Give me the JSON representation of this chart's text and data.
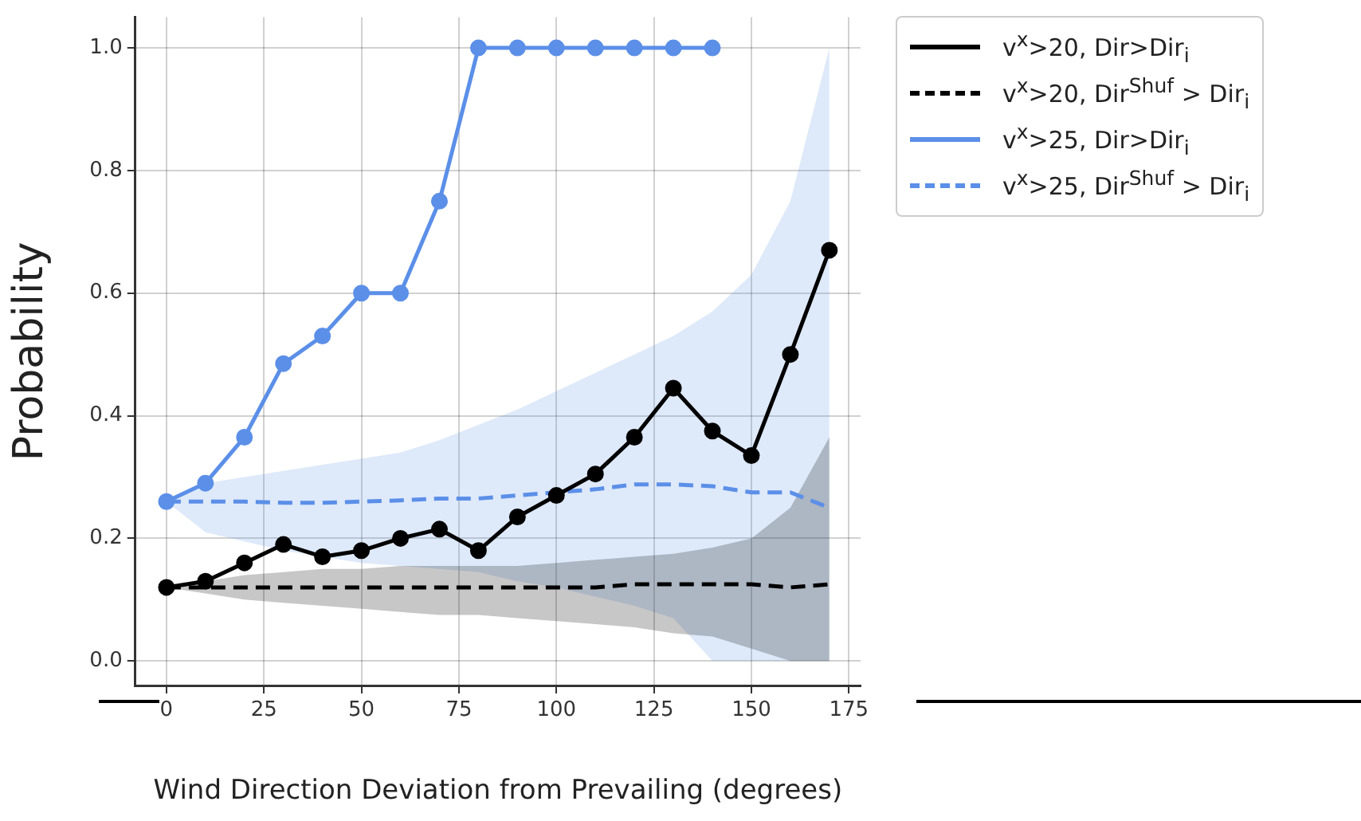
{
  "chart_data": {
    "type": "line",
    "ylabel": "Probability",
    "xlabel": "Wind Direction Deviation from Prevailing (degrees)",
    "xlim": [
      -8,
      178
    ],
    "xticks": [
      0,
      25,
      50,
      75,
      100,
      125,
      150,
      175
    ],
    "ylim": [
      -0.04,
      1.05
    ],
    "yticks": [
      {
        "value": 0,
        "label": "0.0"
      },
      {
        "value": 0.2,
        "label": "0.2"
      },
      {
        "value": 0.4,
        "label": "0.4"
      },
      {
        "value": 0.6,
        "label": "0.6"
      },
      {
        "value": 0.8,
        "label": "0.8"
      },
      {
        "value": 1,
        "label": "1.0"
      }
    ],
    "grid": true,
    "legend": "top right",
    "marker": "circle",
    "series": [
      {
        "name": "v$^{x}$>20, Dir>Dir$_{i}$",
        "color": "#000000",
        "line_style": "solid",
        "x": [
          0,
          10,
          20,
          30,
          40,
          50,
          60,
          70,
          80,
          90,
          100,
          110,
          120,
          130,
          140,
          150,
          160,
          170
        ],
        "values": [
          0.12,
          0.13,
          0.16,
          0.19,
          0.17,
          0.18,
          0.2,
          0.215,
          0.18,
          0.235,
          0.27,
          0.305,
          0.365,
          0.445,
          0.375,
          0.335,
          0.5,
          0.67
        ]
      },
      {
        "name": "v$^{x}$>20, Dir$^{Shuf}$ > Dir$_{i}$",
        "color": "#000000",
        "line_style": "dashed",
        "marker": "none",
        "x": [
          0,
          10,
          20,
          30,
          40,
          50,
          60,
          70,
          80,
          90,
          100,
          110,
          120,
          130,
          140,
          150,
          160,
          170
        ],
        "values": [
          0.12,
          0.12,
          0.12,
          0.12,
          0.12,
          0.12,
          0.12,
          0.12,
          0.12,
          0.12,
          0.12,
          0.12,
          0.125,
          0.125,
          0.125,
          0.125,
          0.12,
          0.125
        ],
        "lower": [
          0.12,
          0.11,
          0.1,
          0.095,
          0.09,
          0.085,
          0.08,
          0.075,
          0.075,
          0.07,
          0.065,
          0.06,
          0.055,
          0.045,
          0.04,
          0.02,
          0.0,
          0.0
        ],
        "upper": [
          0.12,
          0.13,
          0.14,
          0.145,
          0.15,
          0.15,
          0.155,
          0.155,
          0.155,
          0.155,
          0.16,
          0.165,
          0.17,
          0.175,
          0.185,
          0.2,
          0.25,
          0.365
        ]
      },
      {
        "name": "v$^{x}$>25, Dir>Dir$_{i}$",
        "color": "#5b8fe8",
        "line_style": "solid",
        "x": [
          0,
          10,
          20,
          30,
          40,
          50,
          60,
          70,
          80,
          90,
          100,
          110,
          120,
          130,
          140
        ],
        "values": [
          0.26,
          0.29,
          0.365,
          0.485,
          0.53,
          0.6,
          0.6,
          0.75,
          1,
          1,
          1,
          1,
          1,
          1,
          1
        ]
      },
      {
        "name": "v$^{x}$>25, Dir$^{Shuf}$ > Dir$_{i}$",
        "color": "#5b8fe8",
        "line_style": "dashed",
        "marker": "none",
        "x": [
          0,
          10,
          20,
          30,
          40,
          50,
          60,
          70,
          80,
          90,
          100,
          110,
          120,
          130,
          140,
          150,
          160,
          170
        ],
        "values": [
          0.26,
          0.26,
          0.26,
          0.258,
          0.258,
          0.26,
          0.262,
          0.265,
          0.265,
          0.27,
          0.275,
          0.28,
          0.288,
          0.288,
          0.285,
          0.275,
          0.275,
          0.25
        ],
        "lower": [
          0.26,
          0.21,
          0.195,
          0.18,
          0.17,
          0.16,
          0.155,
          0.15,
          0.145,
          0.13,
          0.12,
          0.105,
          0.09,
          0.07,
          0.0,
          0.0,
          0.0,
          0.0
        ],
        "upper": [
          0.26,
          0.29,
          0.3,
          0.31,
          0.32,
          0.33,
          0.34,
          0.36,
          0.385,
          0.41,
          0.44,
          0.47,
          0.5,
          0.53,
          0.57,
          0.63,
          0.75,
          1.0
        ]
      }
    ]
  }
}
